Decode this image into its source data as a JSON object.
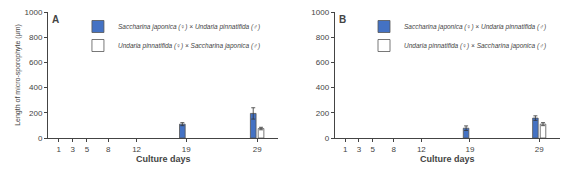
{
  "chart_data": [
    {
      "type": "bar",
      "title": "A",
      "x": [
        1,
        3,
        5,
        8,
        12,
        19,
        29
      ],
      "xlim": [
        -0.5,
        32
      ],
      "xticks": [
        1,
        3,
        5,
        8,
        12,
        19,
        29
      ],
      "xlabel": "Culture days",
      "ylabel": "Length of micro-sporophyte (μm)",
      "ylim": [
        0,
        1000
      ],
      "yticks": [
        0,
        200,
        400,
        600,
        800,
        1000
      ],
      "grid": false,
      "legend": "upper left",
      "series": [
        {
          "name": "Saccharina japonica (♀) × Undaria pinnatifida (♂)",
          "color": "#4472c4",
          "values": [
            0,
            0,
            0,
            0,
            0,
            110,
            195
          ],
          "errors": [
            0,
            0,
            0,
            0,
            0,
            12,
            45
          ]
        },
        {
          "name": "Undaria pinnatifida (♀) × Saccharina japonica (♂)",
          "color": "#ffffff",
          "values": [
            0,
            0,
            0,
            0,
            0,
            0,
            75
          ],
          "errors": [
            0,
            0,
            0,
            0,
            0,
            0,
            10
          ]
        }
      ]
    },
    {
      "type": "bar",
      "title": "B",
      "x": [
        1,
        3,
        5,
        8,
        12,
        19,
        29
      ],
      "xlim": [
        -0.5,
        32
      ],
      "xticks": [
        1,
        3,
        5,
        8,
        12,
        19,
        29
      ],
      "xlabel": "Culture days",
      "ylim": [
        0,
        1000
      ],
      "yticks": [
        0,
        200,
        400,
        600,
        800,
        1000
      ],
      "grid": false,
      "legend": "upper left",
      "series": [
        {
          "name": "Saccharina japonica (♀) × Undaria pinnatifida (♂)",
          "color": "#4472c4",
          "values": [
            0,
            0,
            0,
            0,
            0,
            78,
            158
          ],
          "errors": [
            0,
            0,
            0,
            0,
            0,
            18,
            18
          ]
        },
        {
          "name": "Undaria pinnatifida (♀) × Saccharina japonica (♂)",
          "color": "#ffffff",
          "values": [
            0,
            0,
            0,
            0,
            0,
            0,
            110
          ],
          "errors": [
            0,
            0,
            0,
            0,
            0,
            0,
            12
          ]
        }
      ]
    }
  ]
}
